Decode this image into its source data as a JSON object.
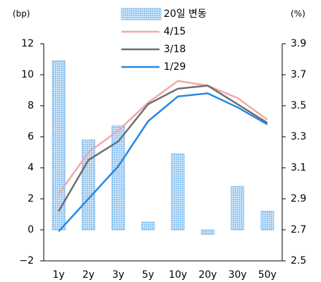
{
  "chart_data": {
    "type": "combo",
    "y_label": "(bp)",
    "y2_label": "(%)",
    "categories": [
      "1y",
      "2y",
      "3y",
      "5y",
      "10y",
      "20y",
      "30y",
      "50y"
    ],
    "ylim": [
      -2,
      12
    ],
    "yticks": [
      {
        "value": -2,
        "label": "−2"
      },
      0,
      2,
      4,
      6,
      8,
      10,
      12
    ],
    "y2lim": [
      2.5,
      3.9
    ],
    "y2ticks": [
      2.5,
      2.7,
      2.9,
      3.1,
      3.3,
      3.5,
      3.7,
      3.9
    ],
    "series": [
      {
        "name": "20일 변동",
        "type": "bar",
        "color": "#a9d2f3",
        "values": [
          10.9,
          5.8,
          6.7,
          0.5,
          4.9,
          -0.3,
          2.8,
          1.2
        ]
      },
      {
        "name": "4/15",
        "type": "line",
        "axis": "y2",
        "color": "#f4a7a7",
        "values": [
          2.93,
          3.2,
          3.34,
          3.52,
          3.66,
          3.63,
          3.55,
          3.41
        ]
      },
      {
        "name": "3/18",
        "type": "line",
        "axis": "y2",
        "color": "#6e6e6e",
        "values": [
          2.82,
          3.15,
          3.27,
          3.51,
          3.61,
          3.63,
          3.51,
          3.39
        ]
      },
      {
        "name": "1/29",
        "type": "line",
        "axis": "y2",
        "color": "#2388e6",
        "values": [
          2.69,
          2.9,
          3.11,
          3.4,
          3.56,
          3.58,
          3.49,
          3.38
        ]
      }
    ]
  }
}
